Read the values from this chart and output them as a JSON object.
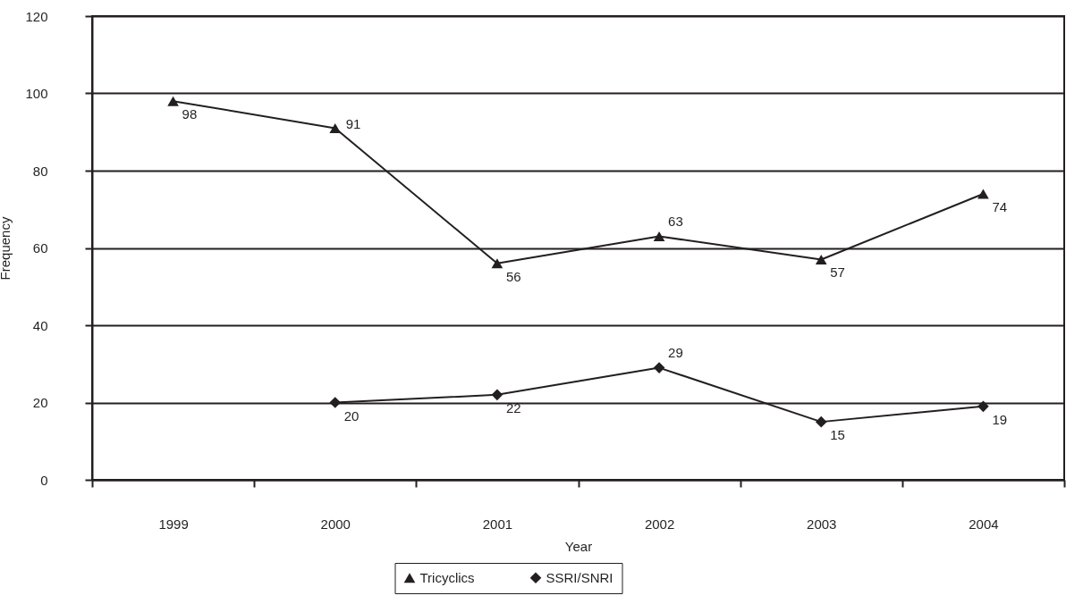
{
  "chart_data": {
    "type": "line",
    "xlabel": "Year",
    "ylabel": "Frequency",
    "categories": [
      "1999",
      "2000",
      "2001",
      "2002",
      "2003",
      "2004"
    ],
    "series": [
      {
        "name": "Tricyclics",
        "color": "#231f20",
        "marker": "triangle",
        "values": [
          98,
          91,
          56,
          63,
          57,
          74
        ]
      },
      {
        "name": "SSRI/SNRI",
        "color": "#231f20",
        "marker": "diamond",
        "values": [
          null,
          20,
          22,
          29,
          15,
          19
        ]
      }
    ],
    "ylim": [
      0,
      120
    ],
    "yticks": [
      0,
      20,
      40,
      60,
      80,
      100,
      120
    ],
    "grid": "y",
    "legend": "bottom",
    "data_labels": true
  }
}
